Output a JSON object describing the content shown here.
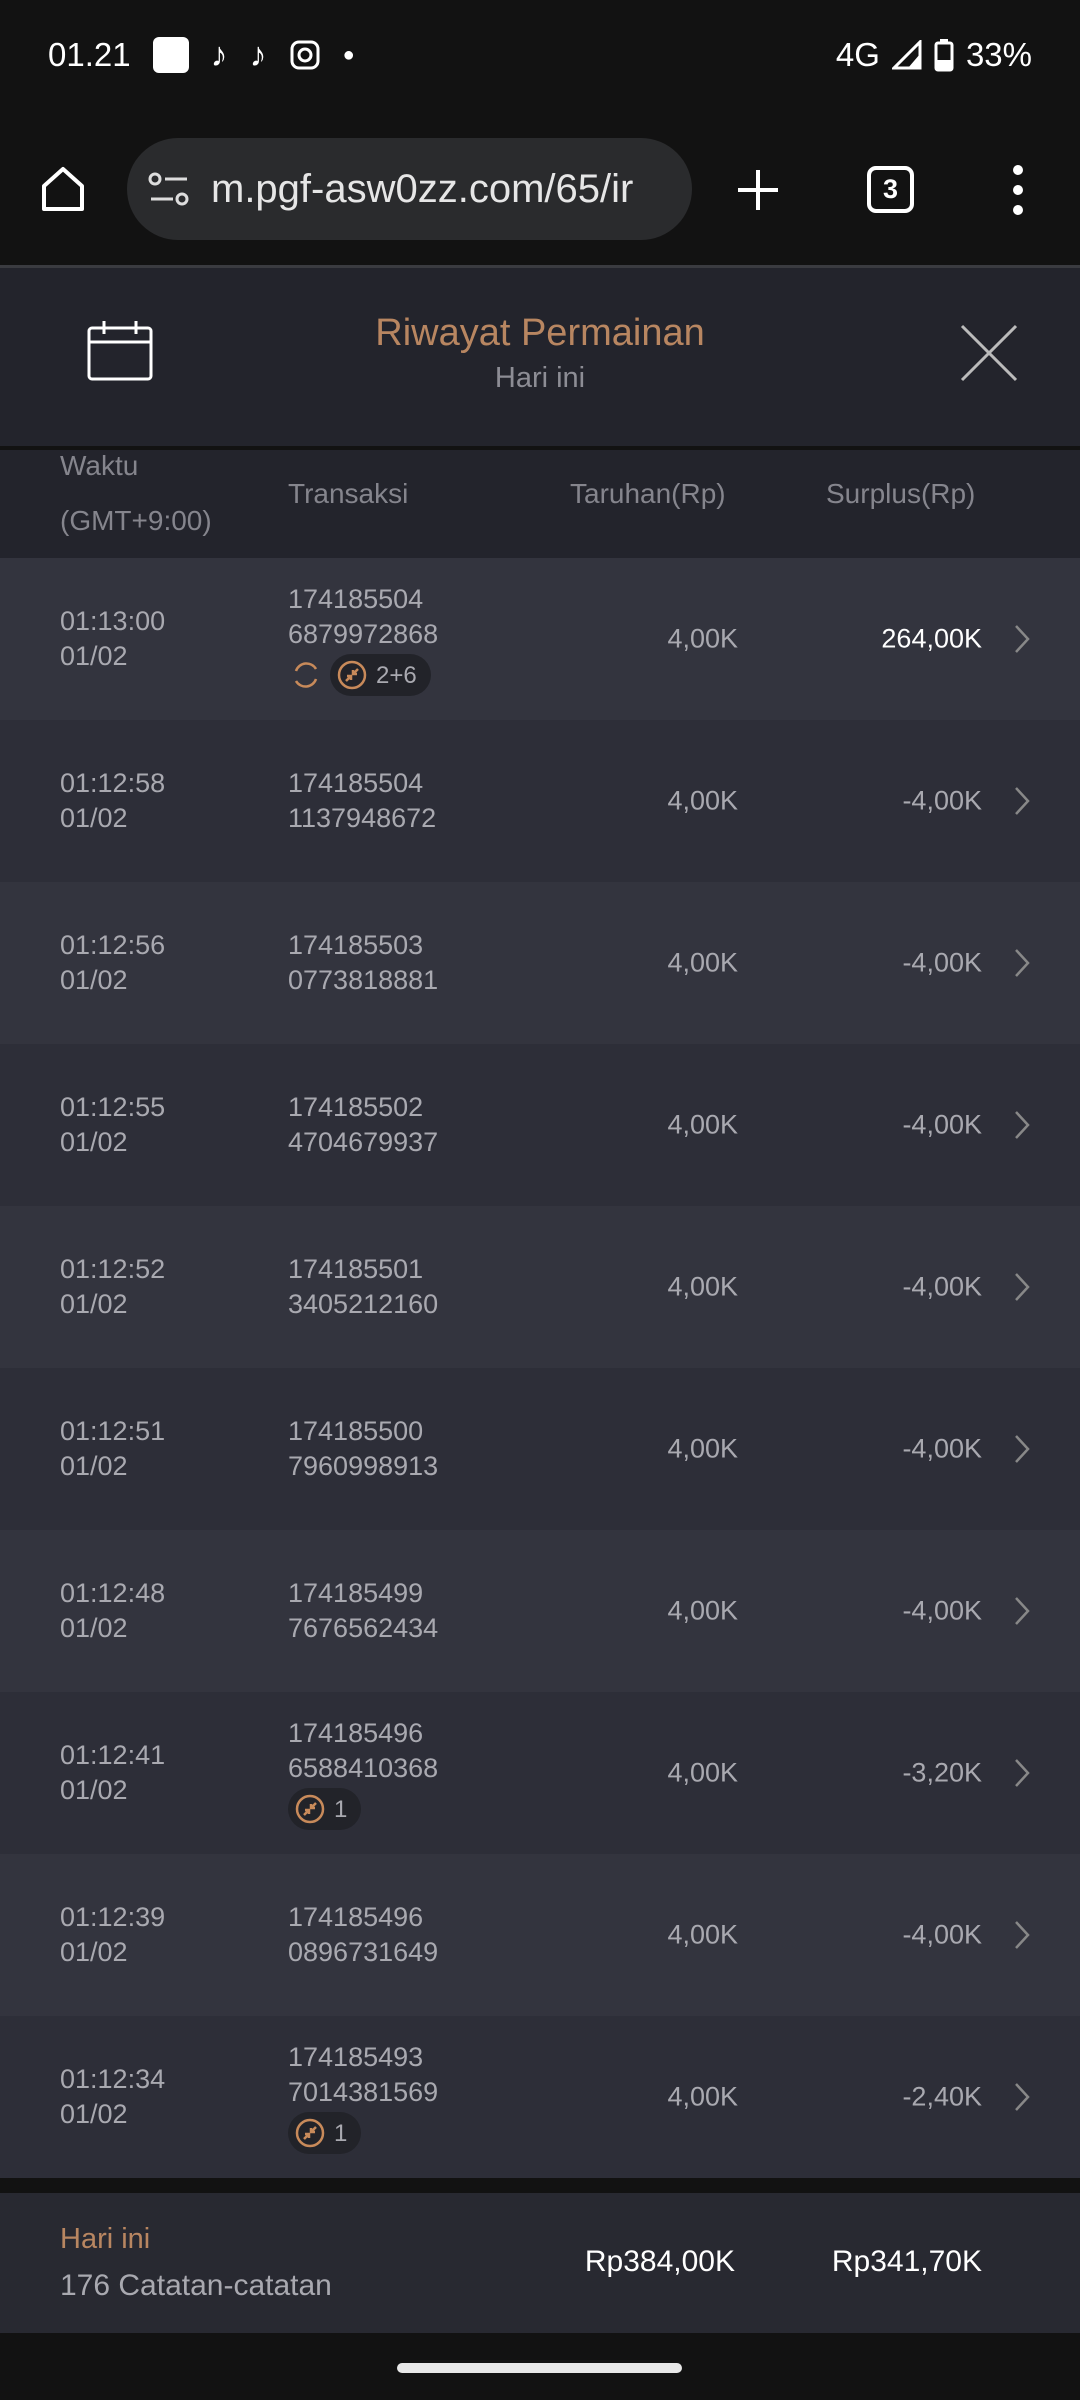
{
  "status_bar": {
    "time": "01.21",
    "network": "4G",
    "battery": "33%",
    "notification_icons": [
      "app-icon",
      "tiktok-icon",
      "tiktok-icon",
      "instagram-icon",
      "dot-icon"
    ]
  },
  "browser": {
    "url": "m.pgf-asw0zz.com/65/ir",
    "tab_count": "3"
  },
  "header": {
    "title": "Riwayat Permainan",
    "subtitle": "Hari ini"
  },
  "columns": {
    "time": "Waktu",
    "timezone": "(GMT+9:00)",
    "transaction": "Transaksi",
    "bet": "Taruhan(Rp)",
    "surplus": "Surplus(Rp)"
  },
  "accent_color": "#b88661",
  "rows": [
    {
      "time": "01:13:00",
      "date": "01/02",
      "tx1": "174185504",
      "tx2": "6879972868",
      "bet": "4,00K",
      "surplus": "264,00K",
      "highlight": true,
      "refresh": true,
      "badge": "2+6"
    },
    {
      "time": "01:12:58",
      "date": "01/02",
      "tx1": "174185504",
      "tx2": "1137948672",
      "bet": "4,00K",
      "surplus": "-4,00K"
    },
    {
      "time": "01:12:56",
      "date": "01/02",
      "tx1": "174185503",
      "tx2": "0773818881",
      "bet": "4,00K",
      "surplus": "-4,00K"
    },
    {
      "time": "01:12:55",
      "date": "01/02",
      "tx1": "174185502",
      "tx2": "4704679937",
      "bet": "4,00K",
      "surplus": "-4,00K"
    },
    {
      "time": "01:12:52",
      "date": "01/02",
      "tx1": "174185501",
      "tx2": "3405212160",
      "bet": "4,00K",
      "surplus": "-4,00K"
    },
    {
      "time": "01:12:51",
      "date": "01/02",
      "tx1": "174185500",
      "tx2": "7960998913",
      "bet": "4,00K",
      "surplus": "-4,00K"
    },
    {
      "time": "01:12:48",
      "date": "01/02",
      "tx1": "174185499",
      "tx2": "7676562434",
      "bet": "4,00K",
      "surplus": "-4,00K"
    },
    {
      "time": "01:12:41",
      "date": "01/02",
      "tx1": "174185496",
      "tx2": "6588410368",
      "bet": "4,00K",
      "surplus": "-3,20K",
      "badge": "1"
    },
    {
      "time": "01:12:39",
      "date": "01/02",
      "tx1": "174185496",
      "tx2": "0896731649",
      "bet": "4,00K",
      "surplus": "-4,00K"
    },
    {
      "time": "01:12:34",
      "date": "01/02",
      "tx1": "174185493",
      "tx2": "7014381569",
      "bet": "4,00K",
      "surplus": "-2,40K",
      "badge": "1"
    }
  ],
  "footer": {
    "label": "Hari ini",
    "count": "176 Catatan-catatan",
    "total_bet": "Rp384,00K",
    "total_surplus": "Rp341,70K"
  }
}
